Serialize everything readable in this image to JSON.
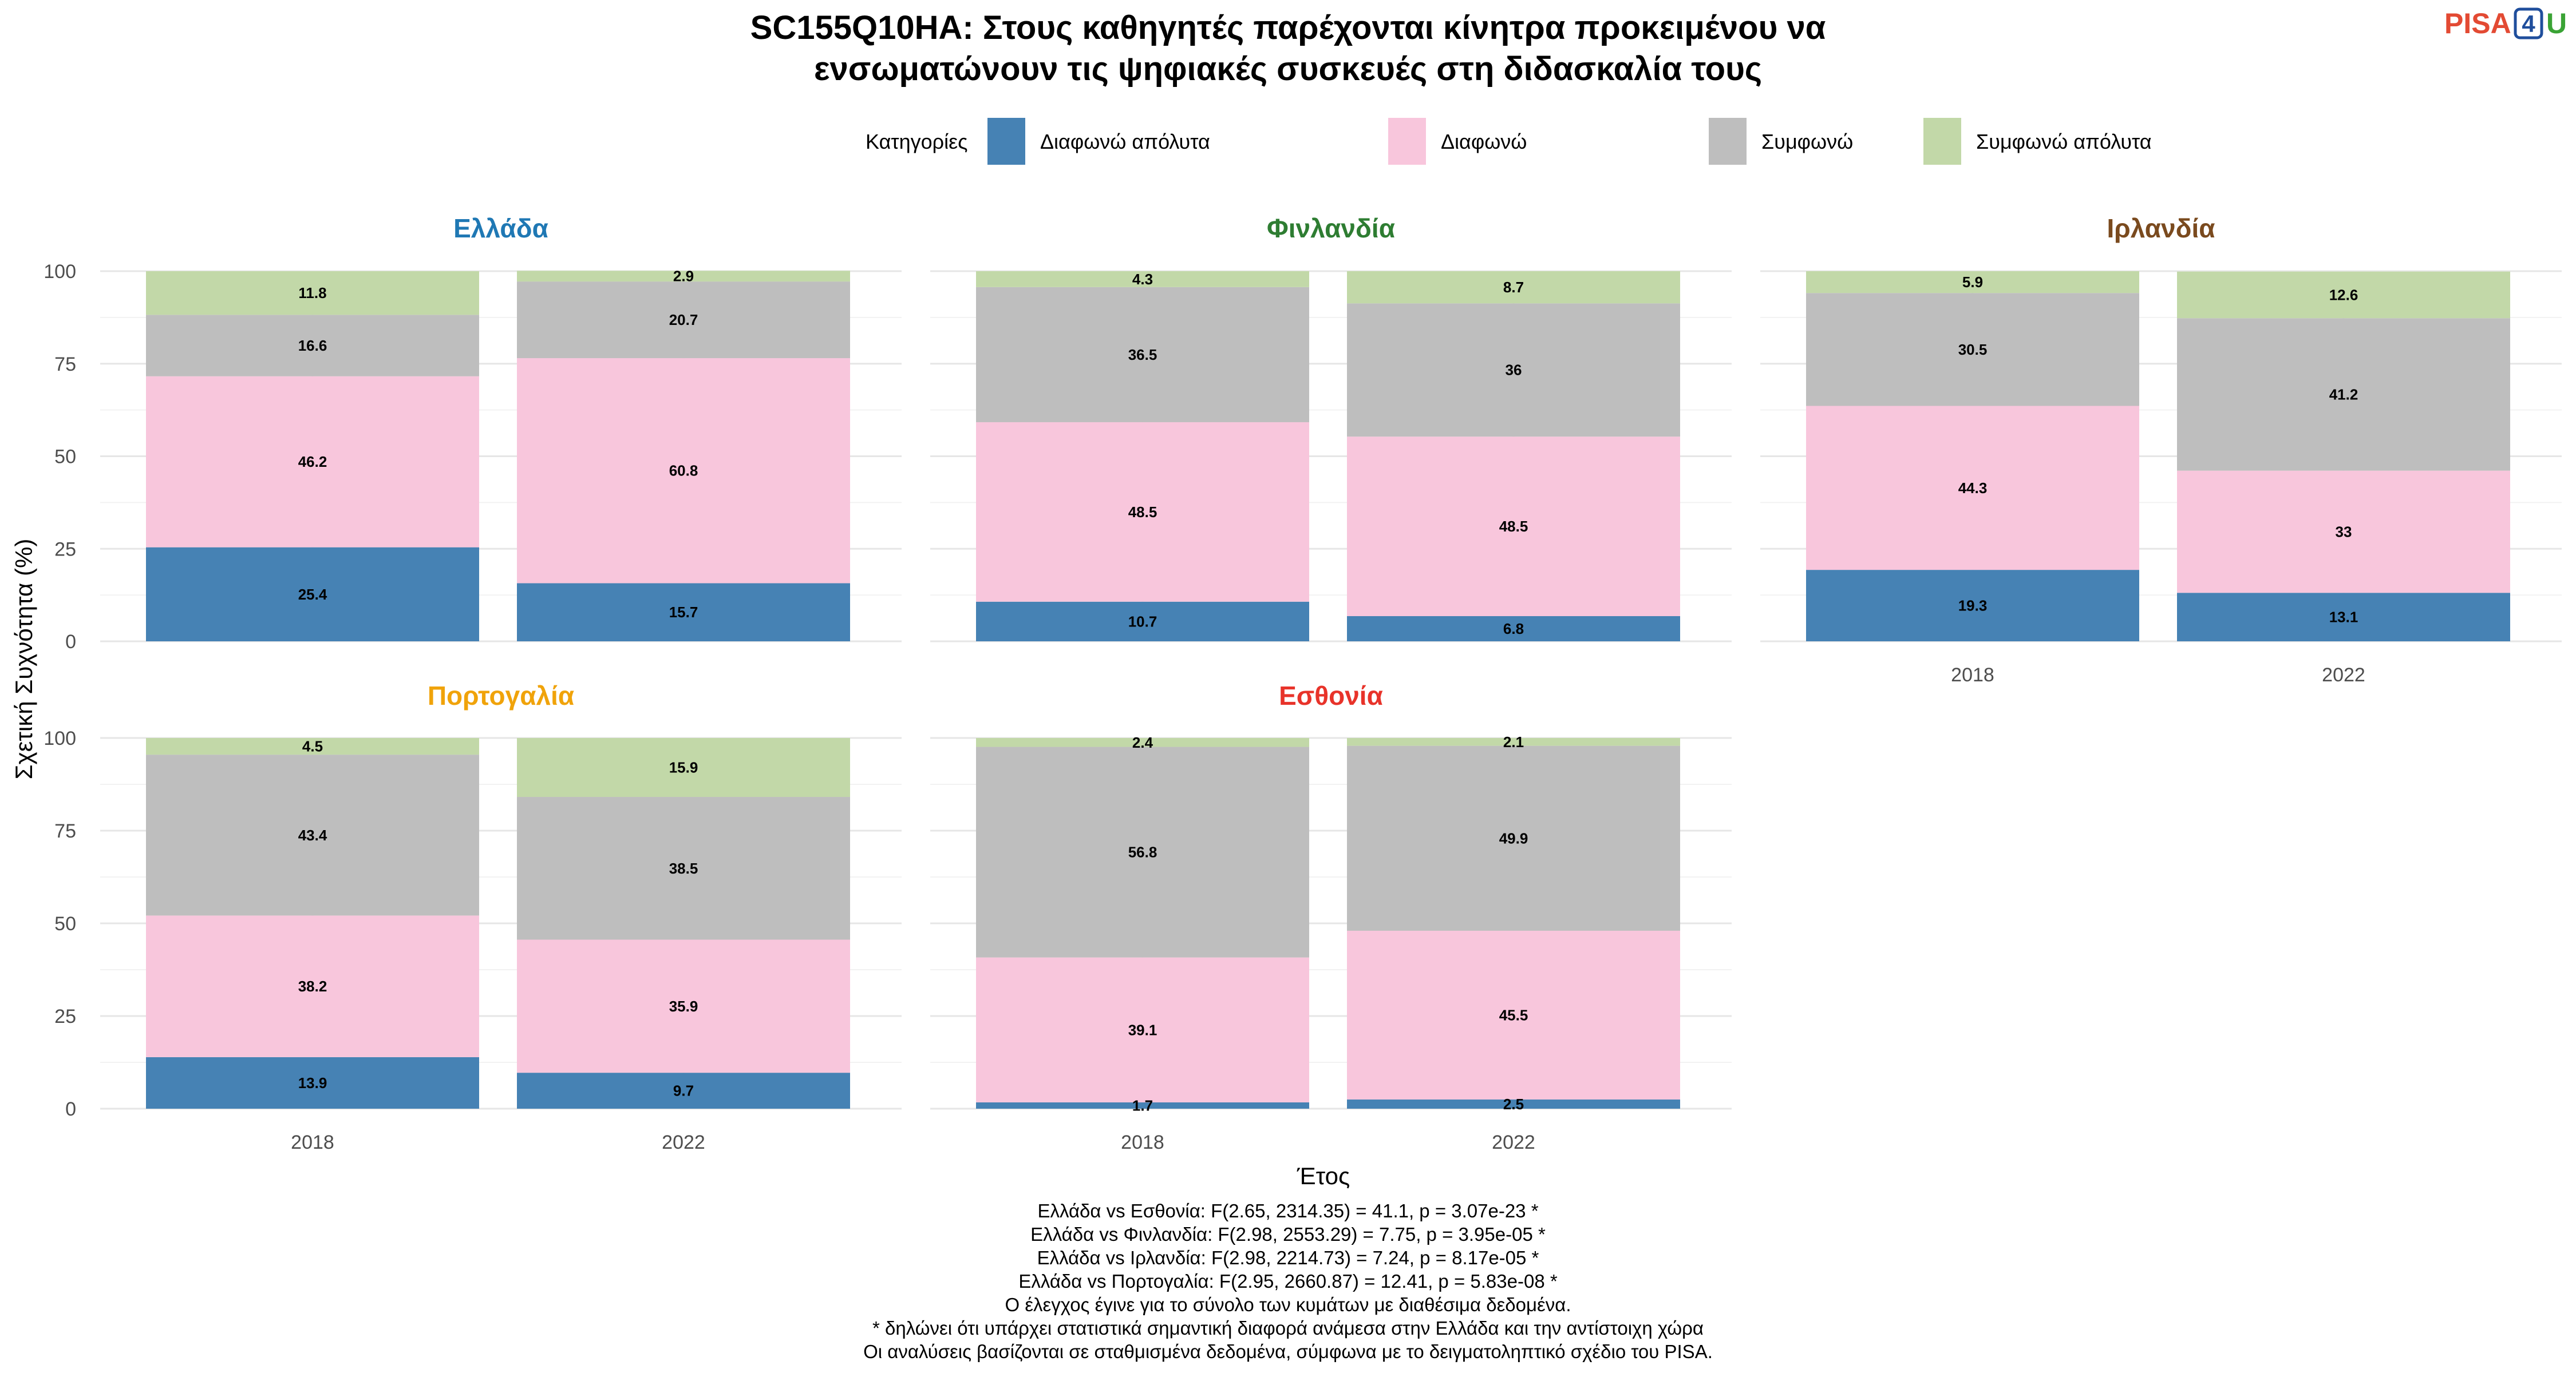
{
  "title_lines": [
    "SC155Q10HA: Στους καθηγητές παρέχονται κίνητρα προκειμένου να",
    "ενσωματώνουν τις ψηφιακές συσκευές στη διδασκαλία τους"
  ],
  "logo": {
    "pisa": "PISA",
    "four": "4",
    "u": "U"
  },
  "chart_data": {
    "type": "bar",
    "stacked": true,
    "title": "SC155Q10HA: Στους καθηγητές παρέχονται κίνητρα προκειμένου να ενσωματώνουν τις ψηφιακές συσκευές στη διδασκαλία τους",
    "xlabel": "Έτος",
    "ylabel": "Σχετική Συχνότητα (%)",
    "ylim": [
      0,
      100
    ],
    "yticks": [
      0,
      25,
      50,
      75,
      100
    ],
    "grid": true,
    "legend_title": "Κατηγορίες",
    "legend_position": "top",
    "categories": [
      "2018",
      "2022"
    ],
    "series": [
      {
        "name": "Διαφωνώ απόλυτα",
        "color": "#4682b4"
      },
      {
        "name": "Διαφωνώ",
        "color": "#f8c6dc"
      },
      {
        "name": "Συμφωνώ",
        "color": "#bebebe"
      },
      {
        "name": "Συμφωνώ απόλυτα",
        "color": "#c2d8a8"
      }
    ],
    "facets": [
      {
        "name": "Ελλάδα",
        "color": "#1f78b4",
        "values": {
          "2018": [
            25.4,
            46.2,
            16.6,
            11.8
          ],
          "2022": [
            15.7,
            60.8,
            20.7,
            2.9
          ]
        }
      },
      {
        "name": "Φινλανδία",
        "color": "#2e7d32",
        "values": {
          "2018": [
            10.7,
            48.5,
            36.5,
            4.3
          ],
          "2022": [
            6.8,
            48.5,
            36,
            8.7
          ]
        }
      },
      {
        "name": "Ιρλανδία",
        "color": "#7a4a1e",
        "values": {
          "2018": [
            19.3,
            44.3,
            30.5,
            5.9
          ],
          "2022": [
            13.1,
            33,
            41.2,
            12.6
          ]
        }
      },
      {
        "name": "Πορτογαλία",
        "color": "#f0a30a",
        "values": {
          "2018": [
            13.9,
            38.2,
            43.4,
            4.5
          ],
          "2022": [
            9.7,
            35.9,
            38.5,
            15.9
          ]
        }
      },
      {
        "name": "Εσθονία",
        "color": "#e8332a",
        "values": {
          "2018": [
            1.7,
            39.1,
            56.8,
            2.4
          ],
          "2022": [
            2.5,
            45.5,
            49.9,
            2.1
          ]
        }
      }
    ],
    "caption_lines": [
      "Ελλάδα vs Εσθονία: F(2.65, 2314.35) = 41.1, p = 3.07e-23 *",
      "Ελλάδα vs Φινλανδία: F(2.98, 2553.29) = 7.75, p = 3.95e-05 *",
      "Ελλάδα vs Ιρλανδία: F(2.98, 2214.73) = 7.24, p = 8.17e-05 *",
      "Ελλάδα vs Πορτογαλία: F(2.95, 2660.87) = 12.41, p = 5.83e-08 *",
      "Ο έλεγχος έγινε για το σύνολο των κυμάτων με διαθέσιμα δεδομένα.",
      "* δηλώνει ότι υπάρχει στατιστικά σημαντική διαφορά ανάμεσα στην Ελλάδα και την αντίστοιχη χώρα",
      "Οι αναλύσεις βασίζονται σε σταθμισμένα δεδομένα, σύμφωνα με το δειγματοληπτικό σχέδιο του PISA."
    ]
  }
}
